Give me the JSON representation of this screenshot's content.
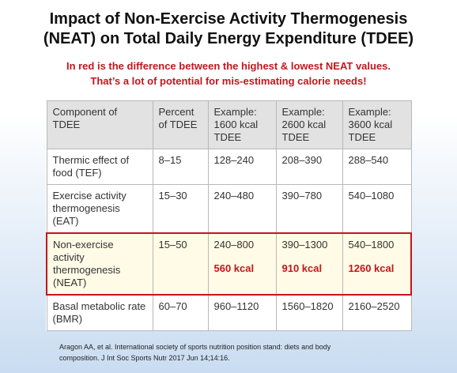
{
  "header": {
    "title_lines": [
      "Impact of Non-Exercise Activity Thermogenesis",
      "(NEAT) on Total Daily Energy Expenditure (TDEE)"
    ],
    "subtitle_lines": [
      "In red is the difference between the highest & lowest NEAT values.",
      "That’s a lot of potential for mis-estimating calorie needs!"
    ]
  },
  "table": {
    "columns": [
      "Component of TDEE",
      "Percent of TDEE",
      "Example: 1600 kcal TDEE",
      "Example: 2600 kcal TDEE",
      "Example: 3600 kcal TDEE"
    ],
    "rows": [
      [
        "Thermic effect of food (TEF)",
        "8–15",
        "128–240",
        "208–390",
        "288–540"
      ],
      [
        "Exercise activity thermogenesis (EAT)",
        "15–30",
        "240–480",
        "390–780",
        "540–1080"
      ],
      [
        "Non-exercise activity thermogenesis (NEAT)",
        "15–50",
        "240–800",
        "390–1300",
        "540–1800"
      ],
      [
        "Basal metabolic rate (BMR)",
        "60–70",
        "960–1120",
        "1560–1820",
        "2160–2520"
      ]
    ],
    "neat_differences": [
      "560 kcal",
      "910 kcal",
      "1260 kcal"
    ]
  },
  "citation_lines": [
    "Aragon AA, et al. International society of sports nutrition position stand: diets and body",
    "composition.  J Int Soc Sports Nutr 2017 Jun 14;14:16."
  ]
}
